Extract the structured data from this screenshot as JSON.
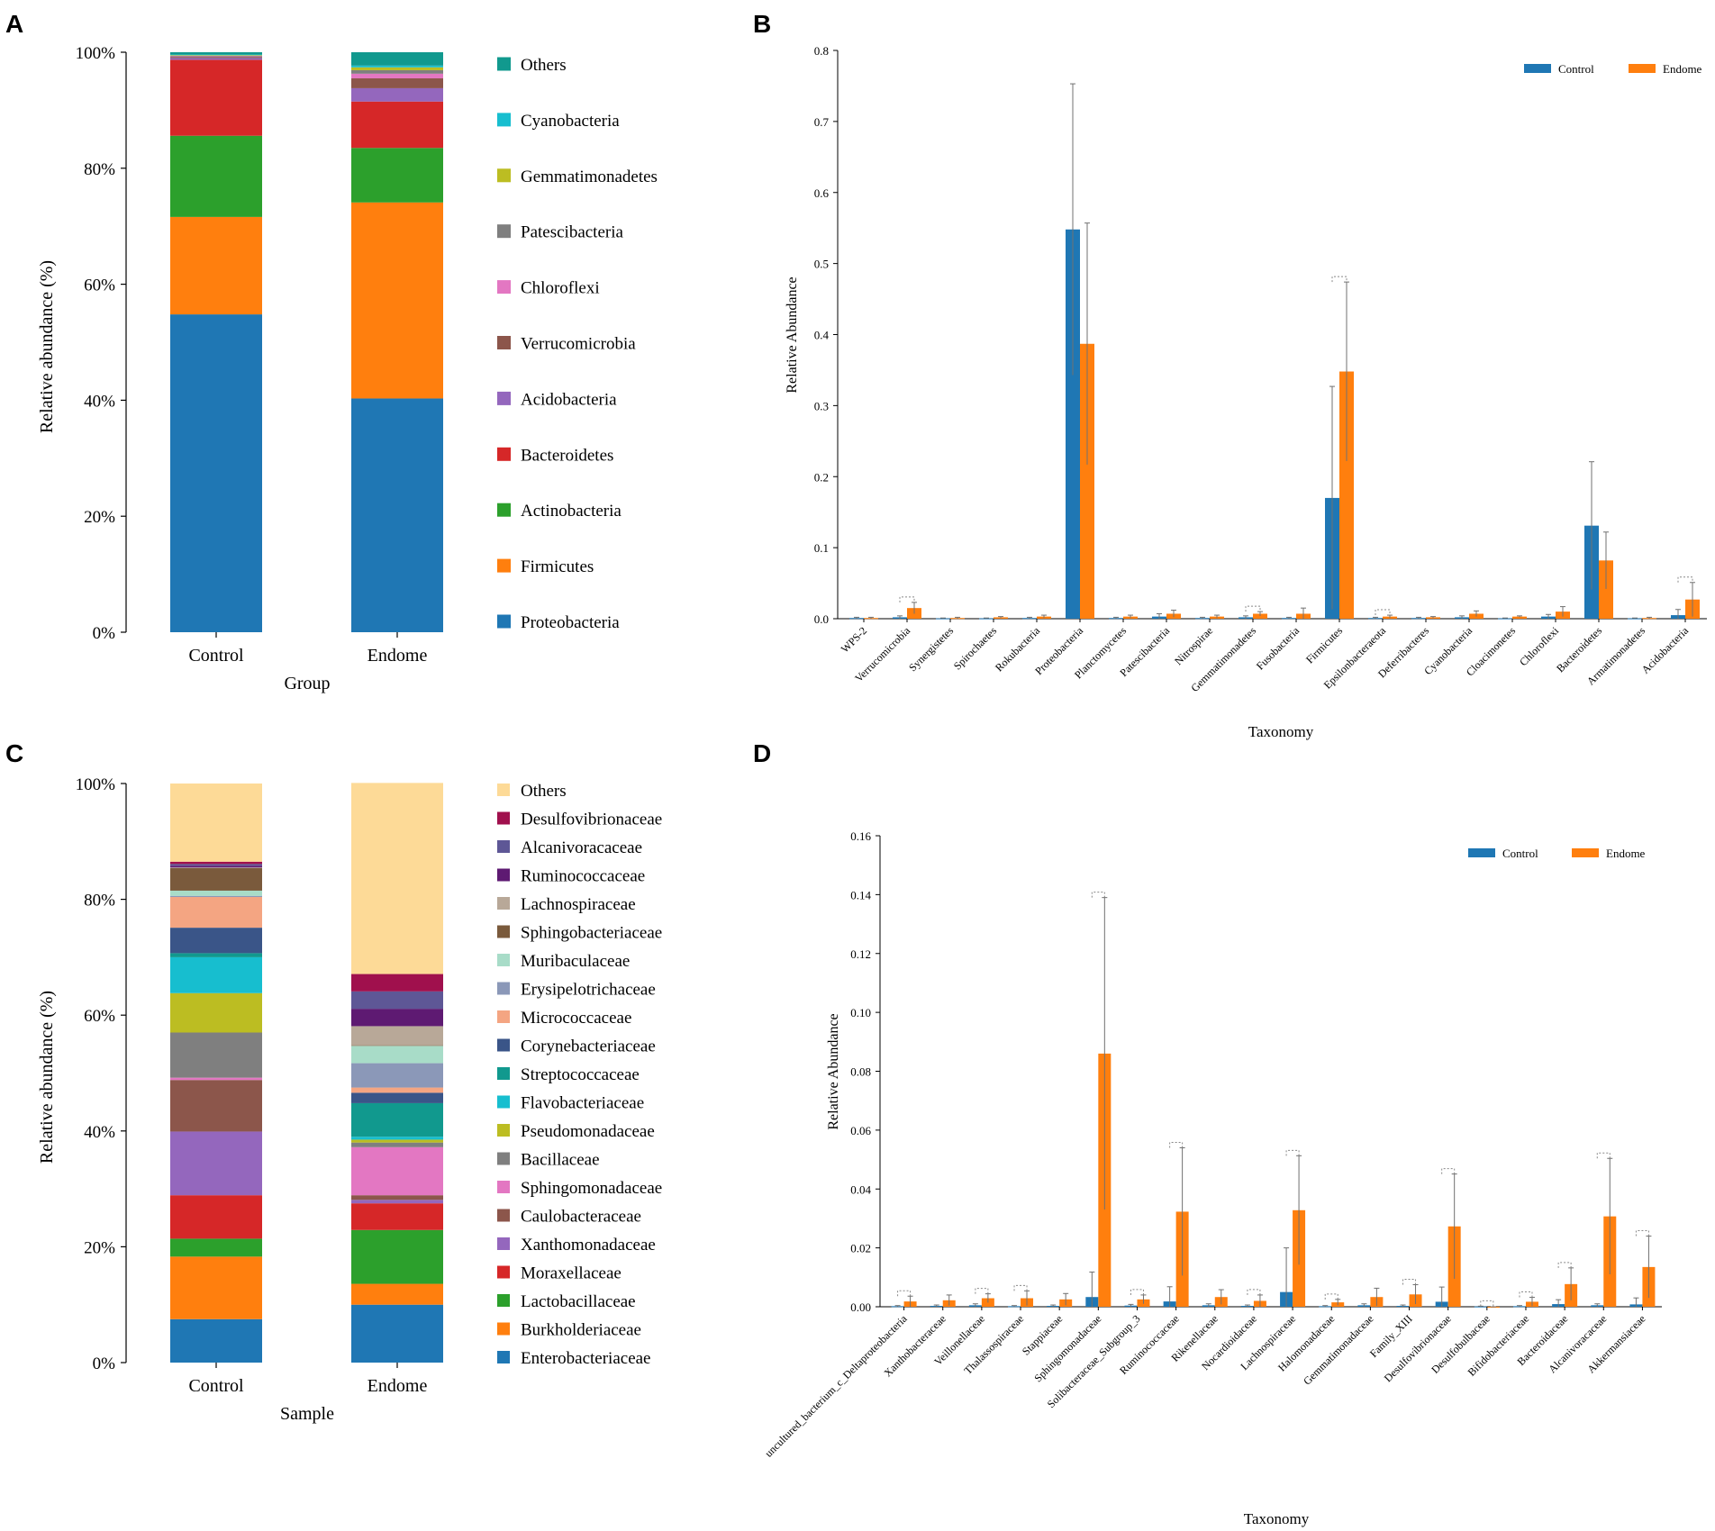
{
  "colors": {
    "control": "#1f77b4",
    "endome": "#ff7f0e",
    "errorbar": "#707070",
    "axis": "#000000"
  },
  "chart_data": [
    {
      "panel": "A",
      "type": "bar",
      "stacked": true,
      "title": "",
      "xlabel": "Group",
      "ylabel": "Relative abundance (%)",
      "ylim": [
        0,
        100
      ],
      "yticks": [
        "0%",
        "20%",
        "40%",
        "60%",
        "80%",
        "100%"
      ],
      "categories": [
        "Control",
        "Endome"
      ],
      "series": [
        {
          "name": "Proteobacteria",
          "color": "#1f77b4",
          "values": [
            54.8,
            40.3
          ]
        },
        {
          "name": "Firmicutes",
          "color": "#ff7f0e",
          "values": [
            16.8,
            33.8
          ]
        },
        {
          "name": "Actinobacteria",
          "color": "#2ca02c",
          "values": [
            14.0,
            9.4
          ]
        },
        {
          "name": "Bacteroidetes",
          "color": "#d62728",
          "values": [
            13.1,
            8.0
          ]
        },
        {
          "name": "Acidobacteria",
          "color": "#9467bd",
          "values": [
            0.3,
            2.3
          ]
        },
        {
          "name": "Verrucomicrobia",
          "color": "#8c564b",
          "values": [
            0.2,
            1.7
          ]
        },
        {
          "name": "Chloroflexi",
          "color": "#e377c2",
          "values": [
            0.1,
            0.8
          ]
        },
        {
          "name": "Patescibacteria",
          "color": "#7f7f7f",
          "values": [
            0.1,
            0.6
          ]
        },
        {
          "name": "Gemmatimonadetes",
          "color": "#bcbd22",
          "values": [
            0.1,
            0.5
          ]
        },
        {
          "name": "Cyanobacteria",
          "color": "#17becf",
          "values": [
            0.1,
            0.3
          ]
        },
        {
          "name": "Others",
          "color": "#11998e",
          "values": [
            0.4,
            2.3
          ]
        }
      ],
      "legend_order": [
        "Others",
        "Cyanobacteria",
        "Gemmatimonadetes",
        "Patescibacteria",
        "Chloroflexi",
        "Verrucomicrobia",
        "Acidobacteria",
        "Bacteroidetes",
        "Actinobacteria",
        "Firmicutes",
        "Proteobacteria"
      ]
    },
    {
      "panel": "B",
      "type": "bar",
      "grouped": true,
      "title": "",
      "xlabel": "Taxonomy",
      "ylabel": "Relative Abundance",
      "ylim": [
        0,
        0.8
      ],
      "yticks": [
        "0.0",
        "0.1",
        "0.2",
        "0.3",
        "0.4",
        "0.5",
        "0.6",
        "0.7",
        "0.8"
      ],
      "legend": [
        "Control",
        "Endome"
      ],
      "categories": [
        "WPS-2",
        "Verrucomicrobia",
        "Synergistetes",
        "Spirochaetes",
        "Rokubacteria",
        "Proteobacteria",
        "Planctomycetes",
        "Patescibacteria",
        "Nitrospirae",
        "Gemmatimonadetes",
        "Fusobacteria",
        "Firmicutes",
        "Epsilonbacteraeota",
        "Deferribacteres",
        "Cyanobacteria",
        "Cloacimonetes",
        "Chloroflexi",
        "Bacteroidetes",
        "Armatimonadetes",
        "Acidobacteria"
      ],
      "series": [
        {
          "name": "Control",
          "values": [
            0.001,
            0.002,
            0.0005,
            0.0005,
            0.001,
            0.548,
            0.001,
            0.003,
            0.001,
            0.002,
            0.001,
            0.17,
            0.001,
            0.001,
            0.002,
            0.0005,
            0.003,
            0.131,
            0.0005,
            0.005
          ],
          "err": [
            0.001,
            0.002,
            0.0005,
            0.0005,
            0.001,
            0.205,
            0.001,
            0.004,
            0.001,
            0.002,
            0.001,
            0.157,
            0.001,
            0.001,
            0.002,
            0.0005,
            0.003,
            0.09,
            0.0005,
            0.008
          ]
        },
        {
          "name": "Endome",
          "values": [
            0.001,
            0.015,
            0.001,
            0.002,
            0.003,
            0.387,
            0.003,
            0.007,
            0.003,
            0.007,
            0.007,
            0.348,
            0.003,
            0.002,
            0.007,
            0.003,
            0.01,
            0.082,
            0.001,
            0.027
          ],
          "err": [
            0.001,
            0.008,
            0.001,
            0.001,
            0.002,
            0.17,
            0.002,
            0.005,
            0.002,
            0.003,
            0.008,
            0.126,
            0.002,
            0.001,
            0.004,
            0.001,
            0.007,
            0.04,
            0.001,
            0.024
          ]
        }
      ],
      "significance": [
        "Verrucomicrobia",
        "Gemmatimonadetes",
        "Firmicutes",
        "Epsilonbacteraeota",
        "Acidobacteria"
      ]
    },
    {
      "panel": "C",
      "type": "bar",
      "stacked": true,
      "title": "",
      "xlabel": "Sample",
      "ylabel": "Relative abundance (%)",
      "ylim": [
        0,
        100
      ],
      "yticks": [
        "0%",
        "20%",
        "40%",
        "60%",
        "80%",
        "100%"
      ],
      "categories": [
        "Control",
        "Endome"
      ],
      "series": [
        {
          "name": "Enterobacteriaceae",
          "color": "#1f77b4",
          "values": [
            7.5,
            10.0
          ]
        },
        {
          "name": "Burkholderiaceae",
          "color": "#ff7f0e",
          "values": [
            10.8,
            3.6
          ]
        },
        {
          "name": "Lactobacillaceae",
          "color": "#2ca02c",
          "values": [
            3.1,
            9.3
          ]
        },
        {
          "name": "Moraxellaceae",
          "color": "#d62728",
          "values": [
            7.5,
            4.6
          ]
        },
        {
          "name": "Xanthomonadaceae",
          "color": "#9467bd",
          "values": [
            11.0,
            0.6
          ]
        },
        {
          "name": "Caulobacteraceae",
          "color": "#8c564b",
          "values": [
            8.9,
            0.8
          ]
        },
        {
          "name": "Sphingomonadaceae",
          "color": "#e377c2",
          "values": [
            0.4,
            8.3
          ]
        },
        {
          "name": "Bacillaceae",
          "color": "#7f7f7f",
          "values": [
            7.8,
            0.8
          ]
        },
        {
          "name": "Pseudomonadaceae",
          "color": "#bcbd22",
          "values": [
            6.8,
            0.5
          ]
        },
        {
          "name": "Flavobacteriaceae",
          "color": "#17becf",
          "values": [
            6.2,
            0.5
          ]
        },
        {
          "name": "Streptococcaceae",
          "color": "#11998e",
          "values": [
            0.7,
            5.8
          ]
        },
        {
          "name": "Corynebacteriaceae",
          "color": "#3a5588",
          "values": [
            4.4,
            1.8
          ]
        },
        {
          "name": "Micrococcaceae",
          "color": "#f4a582",
          "values": [
            5.3,
            0.9
          ]
        },
        {
          "name": "Erysipelotrichaceae",
          "color": "#8b98b8",
          "values": [
            0.2,
            4.2
          ]
        },
        {
          "name": "Muribaculaceae",
          "color": "#a8dcc8",
          "values": [
            0.9,
            3.0
          ]
        },
        {
          "name": "Sphingobacteriaceae",
          "color": "#7a5a3c",
          "values": [
            3.9,
            0.1
          ]
        },
        {
          "name": "Lachnospiraceae",
          "color": "#b8a898",
          "values": [
            0.1,
            3.3
          ]
        },
        {
          "name": "Ruminococcaceae",
          "color": "#5e1a72",
          "values": [
            0.3,
            3.0
          ]
        },
        {
          "name": "Alcanivoracaceae",
          "color": "#5e5796",
          "values": [
            0.3,
            3.0
          ]
        },
        {
          "name": "Desulfovibrionaceae",
          "color": "#a0104d",
          "values": [
            0.4,
            3.0
          ]
        },
        {
          "name": "Others",
          "color": "#fdda97",
          "values": [
            13.5,
            33.0
          ]
        }
      ],
      "legend_order": [
        "Others",
        "Desulfovibrionaceae",
        "Alcanivoracaceae",
        "Ruminococcaceae",
        "Lachnospiraceae",
        "Sphingobacteriaceae",
        "Muribaculaceae",
        "Erysipelotrichaceae",
        "Micrococcaceae",
        "Corynebacteriaceae",
        "Streptococcaceae",
        "Flavobacteriaceae",
        "Pseudomonadaceae",
        "Bacillaceae",
        "Sphingomonadaceae",
        "Caulobacteraceae",
        "Xanthomonadaceae",
        "Moraxellaceae",
        "Lactobacillaceae",
        "Burkholderiaceae",
        "Enterobacteriaceae"
      ]
    },
    {
      "panel": "D",
      "type": "bar",
      "grouped": true,
      "title": "",
      "xlabel": "Taxonomy",
      "ylabel": "Relative Abundance",
      "ylim": [
        0,
        0.16
      ],
      "yticks": [
        "0.00",
        "0.02",
        "0.04",
        "0.06",
        "0.08",
        "0.10",
        "0.12",
        "0.14",
        "0.16"
      ],
      "legend": [
        "Control",
        "Endome"
      ],
      "categories": [
        "uncultured_bacterium_c_Deltaproteobacteria",
        "Xanthobacteraceae",
        "Veillonellaceae",
        "Thalassospiraceae",
        "Stappiaceae",
        "Sphingomonadaceae",
        "Solibacteraceae_Subgroup_3",
        "Ruminococcaceae",
        "Rikenellaceae",
        "Nocardioidaceae",
        "Lachnospiraceae",
        "Halomonadaceae",
        "Gemmatimonadaceae",
        "Family_XIII",
        "Desulfovibrionaceae",
        "Desulfobulbaceae",
        "Bifidobacteriaceae",
        "Bacteroidaceae",
        "Alcanivoracaceae",
        "Akkermansiaceae"
      ],
      "series": [
        {
          "name": "Control",
          "values": [
            0.0002,
            0.0003,
            0.0005,
            0.0002,
            0.0003,
            0.0033,
            0.0004,
            0.0018,
            0.0005,
            0.0003,
            0.005,
            0.0002,
            0.0005,
            0.0003,
            0.0017,
            0.0001,
            0.0002,
            0.0009,
            0.0005,
            0.0008
          ],
          "err": [
            0.0002,
            0.0003,
            0.0005,
            0.0002,
            0.0003,
            0.0085,
            0.0004,
            0.005,
            0.0005,
            0.0003,
            0.015,
            0.0002,
            0.0005,
            0.0003,
            0.005,
            0.0001,
            0.0002,
            0.0015,
            0.0005,
            0.0022
          ]
        },
        {
          "name": "Endome",
          "values": [
            0.0018,
            0.0022,
            0.0029,
            0.0029,
            0.0025,
            0.086,
            0.0025,
            0.0323,
            0.0033,
            0.002,
            0.0328,
            0.0015,
            0.0033,
            0.0042,
            0.0273,
            0.0,
            0.0017,
            0.0077,
            0.0307,
            0.0135
          ],
          "err": [
            0.0018,
            0.0018,
            0.0015,
            0.0025,
            0.002,
            0.053,
            0.0015,
            0.0217,
            0.0025,
            0.002,
            0.0185,
            0.001,
            0.003,
            0.0033,
            0.0178,
            0.0,
            0.0015,
            0.0055,
            0.0197,
            0.0105
          ]
        }
      ],
      "significance": [
        "uncultured_bacterium_c_Deltaproteobacteria",
        "Veillonellaceae",
        "Thalassospiraceae",
        "Sphingomonadaceae",
        "Solibacteraceae_Subgroup_3",
        "Ruminococcaceae",
        "Nocardioidaceae",
        "Lachnospiraceae",
        "Halomonadaceae",
        "Family_XIII",
        "Desulfovibrionaceae",
        "Desulfobulbaceae",
        "Bifidobacteriaceae",
        "Bacteroidaceae",
        "Alcanivoracaceae",
        "Akkermansiaceae"
      ]
    }
  ]
}
